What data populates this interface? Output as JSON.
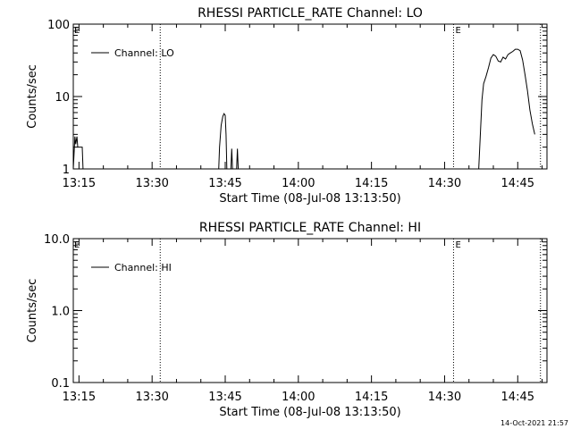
{
  "chart_data": [
    {
      "type": "line",
      "title": "RHESSI PARTICLE_RATE Channel: LO",
      "xlabel": "Start Time (08-Jul-08 13:13:50)",
      "ylabel": "Counts/sec",
      "yscale": "log",
      "ylim": [
        1,
        100
      ],
      "xlim": [
        "13:13:50",
        "14:51:00"
      ],
      "yticks": [
        "1",
        "10",
        "100"
      ],
      "xticks": [
        "13:15",
        "13:30",
        "13:45",
        "14:00",
        "14:15",
        "14:30",
        "14:45"
      ],
      "legend": "top-left",
      "series": [
        {
          "name": "Channel: LO",
          "points": [
            [
              "13:13:50",
              1.0
            ],
            [
              "13:14:10",
              2.8
            ],
            [
              "13:14:20",
              2.2
            ],
            [
              "13:14:35",
              2.8
            ],
            [
              "13:14:45",
              2.0
            ],
            [
              "13:15:40",
              2.0
            ],
            [
              "13:15:50",
              1.0
            ],
            [
              "13:43:40",
              1.0
            ],
            [
              "13:43:50",
              2.0
            ],
            [
              "13:44:10",
              4.0
            ],
            [
              "13:44:30",
              5.3
            ],
            [
              "13:44:45",
              5.8
            ],
            [
              "13:45:00",
              5.5
            ],
            [
              "13:45:10",
              3.0
            ],
            [
              "13:45:20",
              1.0
            ],
            [
              "13:46:10",
              1.0
            ],
            [
              "13:46:20",
              1.9
            ],
            [
              "13:46:30",
              1.0
            ],
            [
              "13:47:20",
              1.0
            ],
            [
              "13:47:30",
              1.9
            ],
            [
              "13:47:40",
              1.0
            ],
            [
              "14:37:00",
              1.0
            ],
            [
              "14:37:20",
              3.0
            ],
            [
              "14:37:40",
              9.0
            ],
            [
              "14:38:00",
              15.0
            ],
            [
              "14:38:30",
              19.0
            ],
            [
              "14:39:00",
              25.0
            ],
            [
              "14:39:30",
              34.0
            ],
            [
              "14:40:00",
              38.0
            ],
            [
              "14:40:30",
              36.0
            ],
            [
              "14:41:00",
              31.0
            ],
            [
              "14:41:30",
              30.0
            ],
            [
              "14:42:00",
              35.0
            ],
            [
              "14:42:30",
              33.0
            ],
            [
              "14:43:00",
              38.0
            ],
            [
              "14:43:30",
              40.0
            ],
            [
              "14:44:00",
              42.0
            ],
            [
              "14:44:30",
              45.0
            ],
            [
              "14:45:00",
              45.0
            ],
            [
              "14:45:30",
              43.0
            ],
            [
              "14:46:00",
              32.0
            ],
            [
              "14:46:30",
              20.0
            ],
            [
              "14:47:00",
              12.0
            ],
            [
              "14:47:30",
              6.5
            ],
            [
              "14:48:00",
              4.2
            ],
            [
              "14:48:30",
              3.0
            ]
          ]
        }
      ],
      "event_markers": [
        {
          "time": "13:31:40",
          "label": ""
        },
        {
          "time": "14:31:50",
          "label": "E"
        },
        {
          "time": "14:49:40",
          "label": ""
        }
      ],
      "corner_label": "E"
    },
    {
      "type": "line",
      "title": "RHESSI PARTICLE_RATE Channel: HI",
      "xlabel": "Start Time (08-Jul-08 13:13:50)",
      "ylabel": "Counts/sec",
      "yscale": "log",
      "ylim": [
        0.1,
        10.0
      ],
      "xlim": [
        "13:13:50",
        "14:51:00"
      ],
      "yticks": [
        "0.1",
        "1.0",
        "10.0"
      ],
      "xticks": [
        "13:15",
        "13:30",
        "13:45",
        "14:00",
        "14:15",
        "14:30",
        "14:45"
      ],
      "legend": "top-left",
      "series": [
        {
          "name": "Channel: HI",
          "points": []
        }
      ],
      "event_markers": [
        {
          "time": "13:31:40",
          "label": ""
        },
        {
          "time": "14:31:50",
          "label": "E"
        },
        {
          "time": "14:49:40",
          "label": ""
        }
      ],
      "corner_label": "E"
    }
  ],
  "footer": {
    "timestamp": "14-Oct-2021 21:57"
  }
}
